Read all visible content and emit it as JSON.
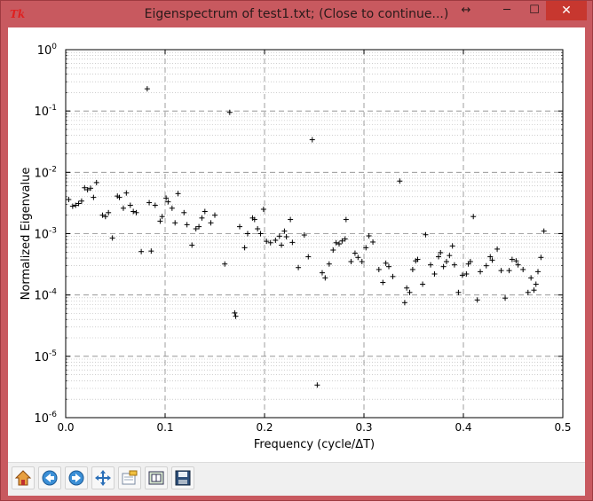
{
  "window": {
    "title": "Eigenspectrum of test1.txt; (Close to continue...)",
    "app_icon": "tk-feather-icon",
    "controls": {
      "resize": "↔",
      "minimize": "─",
      "maximize": "☐",
      "close": "✕"
    }
  },
  "toolbar": {
    "buttons": [
      {
        "name": "home-button",
        "icon": "home-icon"
      },
      {
        "name": "back-button",
        "icon": "arrow-left-icon"
      },
      {
        "name": "forward-button",
        "icon": "arrow-right-icon"
      },
      {
        "name": "pan-button",
        "icon": "move-arrows-icon"
      },
      {
        "name": "zoom-button",
        "icon": "zoom-rect-icon"
      },
      {
        "name": "subplots-button",
        "icon": "subplots-config-icon"
      },
      {
        "name": "save-button",
        "icon": "floppy-disk-icon"
      }
    ]
  },
  "chart_data": {
    "type": "scatter",
    "marker": "+",
    "color": "#000000",
    "xlabel": "Frequency (cycle/ΔT)",
    "ylabel": "Normalized Eigenvalue",
    "yscale": "log",
    "xlim": [
      0.0,
      0.5
    ],
    "ylim": [
      1e-06,
      1
    ],
    "x_ticks": [
      "0.0",
      "0.1",
      "0.2",
      "0.3",
      "0.4",
      "0.5"
    ],
    "y_ticks": [
      {
        "base": "10",
        "exp": "0"
      },
      {
        "base": "10",
        "exp": "-1"
      },
      {
        "base": "10",
        "exp": "-2"
      },
      {
        "base": "10",
        "exp": "-3"
      },
      {
        "base": "10",
        "exp": "-4"
      },
      {
        "base": "10",
        "exp": "-5"
      },
      {
        "base": "10",
        "exp": "-6"
      }
    ],
    "grid": true,
    "points": [
      [
        0.003,
        0.0036
      ],
      [
        0.007,
        0.0028
      ],
      [
        0.01,
        0.0029
      ],
      [
        0.013,
        0.0031
      ],
      [
        0.016,
        0.0034
      ],
      [
        0.019,
        0.0056
      ],
      [
        0.022,
        0.0052
      ],
      [
        0.025,
        0.0055
      ],
      [
        0.028,
        0.0039
      ],
      [
        0.031,
        0.0068
      ],
      [
        0.037,
        0.002
      ],
      [
        0.04,
        0.0019
      ],
      [
        0.043,
        0.0022
      ],
      [
        0.047,
        0.00085
      ],
      [
        0.052,
        0.0041
      ],
      [
        0.054,
        0.0039
      ],
      [
        0.058,
        0.0026
      ],
      [
        0.061,
        0.0046
      ],
      [
        0.065,
        0.0029
      ],
      [
        0.068,
        0.0023
      ],
      [
        0.071,
        0.0022
      ],
      [
        0.076,
        0.00051
      ],
      [
        0.082,
        0.23
      ],
      [
        0.084,
        0.0032
      ],
      [
        0.086,
        0.00052
      ],
      [
        0.09,
        0.0029
      ],
      [
        0.095,
        0.0016
      ],
      [
        0.097,
        0.0019
      ],
      [
        0.101,
        0.0038
      ],
      [
        0.103,
        0.0033
      ],
      [
        0.107,
        0.0026
      ],
      [
        0.11,
        0.0015
      ],
      [
        0.113,
        0.0045
      ],
      [
        0.119,
        0.0022
      ],
      [
        0.122,
        0.0014
      ],
      [
        0.127,
        0.00065
      ],
      [
        0.131,
        0.0012
      ],
      [
        0.134,
        0.0013
      ],
      [
        0.137,
        0.0018
      ],
      [
        0.14,
        0.0023
      ],
      [
        0.146,
        0.0015
      ],
      [
        0.15,
        0.002
      ],
      [
        0.16,
        0.00032
      ],
      [
        0.165,
        0.095
      ],
      [
        0.17,
        5.1e-05
      ],
      [
        0.171,
        4.5e-05
      ],
      [
        0.175,
        0.0013
      ],
      [
        0.18,
        0.00059
      ],
      [
        0.183,
        0.001
      ],
      [
        0.188,
        0.0018
      ],
      [
        0.19,
        0.0017
      ],
      [
        0.193,
        0.0012
      ],
      [
        0.196,
        0.001
      ],
      [
        0.199,
        0.0025
      ],
      [
        0.202,
        0.00075
      ],
      [
        0.206,
        0.00071
      ],
      [
        0.211,
        0.00078
      ],
      [
        0.215,
        0.00091
      ],
      [
        0.217,
        0.00065
      ],
      [
        0.22,
        0.0011
      ],
      [
        0.222,
        0.00089
      ],
      [
        0.226,
        0.0017
      ],
      [
        0.228,
        0.00072
      ],
      [
        0.234,
        0.00028
      ],
      [
        0.24,
        0.00095
      ],
      [
        0.244,
        0.00042
      ],
      [
        0.248,
        0.034
      ],
      [
        0.253,
        3.4e-06
      ],
      [
        0.258,
        0.00023
      ],
      [
        0.261,
        0.00019
      ],
      [
        0.265,
        0.00032
      ],
      [
        0.269,
        0.00054
      ],
      [
        0.272,
        0.00071
      ],
      [
        0.275,
        0.00068
      ],
      [
        0.278,
        0.00076
      ],
      [
        0.281,
        0.00082
      ],
      [
        0.282,
        0.0017
      ],
      [
        0.287,
        0.00035
      ],
      [
        0.291,
        0.00048
      ],
      [
        0.294,
        0.00041
      ],
      [
        0.298,
        0.00035
      ],
      [
        0.302,
        0.00059
      ],
      [
        0.305,
        0.00092
      ],
      [
        0.309,
        0.00073
      ],
      [
        0.315,
        0.00026
      ],
      [
        0.319,
        0.00016
      ],
      [
        0.322,
        0.00033
      ],
      [
        0.325,
        0.00029
      ],
      [
        0.329,
        0.0002
      ],
      [
        0.336,
        0.0072
      ],
      [
        0.341,
        7.5e-05
      ],
      [
        0.343,
        0.00013
      ],
      [
        0.346,
        0.00011
      ],
      [
        0.349,
        0.00026
      ],
      [
        0.352,
        0.00036
      ],
      [
        0.354,
        0.00038
      ],
      [
        0.359,
        0.00015
      ],
      [
        0.362,
        0.00096
      ],
      [
        0.367,
        0.00031
      ],
      [
        0.371,
        0.00022
      ],
      [
        0.375,
        0.00042
      ],
      [
        0.377,
        0.00049
      ],
      [
        0.38,
        0.00029
      ],
      [
        0.383,
        0.00035
      ],
      [
        0.386,
        0.00044
      ],
      [
        0.389,
        0.00063
      ],
      [
        0.391,
        0.00031
      ],
      [
        0.395,
        0.00011
      ],
      [
        0.399,
        0.00021
      ],
      [
        0.403,
        0.00022
      ],
      [
        0.405,
        0.00032
      ],
      [
        0.407,
        0.00035
      ],
      [
        0.41,
        0.0019
      ],
      [
        0.414,
        8.3e-05
      ],
      [
        0.417,
        0.00024
      ],
      [
        0.423,
        0.0003
      ],
      [
        0.427,
        0.00042
      ],
      [
        0.429,
        0.00037
      ],
      [
        0.434,
        0.00056
      ],
      [
        0.438,
        0.00025
      ],
      [
        0.442,
        8.9e-05
      ],
      [
        0.446,
        0.00025
      ],
      [
        0.449,
        0.00038
      ],
      [
        0.453,
        0.00036
      ],
      [
        0.455,
        0.00031
      ],
      [
        0.46,
        0.00026
      ],
      [
        0.465,
        0.00011
      ],
      [
        0.468,
        0.00019
      ],
      [
        0.471,
        0.00012
      ],
      [
        0.473,
        0.00015
      ],
      [
        0.475,
        0.00024
      ],
      [
        0.478,
        0.00041
      ],
      [
        0.481,
        0.0011
      ]
    ]
  }
}
